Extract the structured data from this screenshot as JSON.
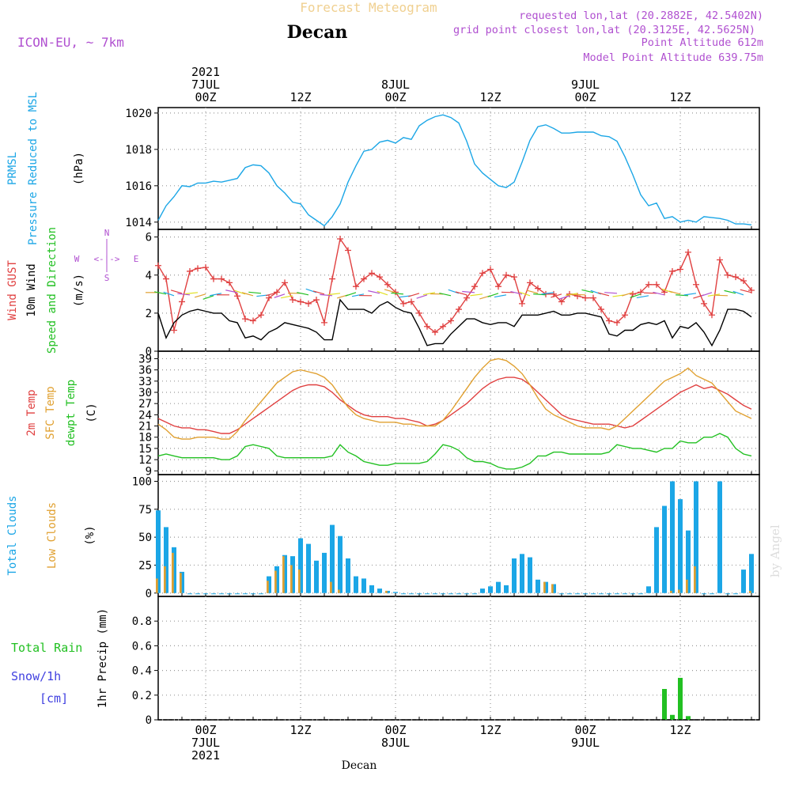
{
  "header": {
    "title": "Forecast Meteogram",
    "location": "Decan",
    "model": "ICON-EU, ~ 7km",
    "requested": "requested lon,lat (20.2882E, 42.5402N)",
    "grid_point": "grid point closest lon,lat (20.3125E, 42.5625N)",
    "point_alt": "Point Altitude 612m",
    "model_alt": "Model Point Altitude 639.75m",
    "credit": "by Angel",
    "footer_location": "Decan"
  },
  "time_axis": {
    "top_labels": [
      {
        "t": 6,
        "lines": [
          "2021",
          "7JUL",
          "00Z"
        ]
      },
      {
        "t": 18,
        "lines": [
          "12Z"
        ]
      },
      {
        "t": 30,
        "lines": [
          "8JUL",
          "00Z"
        ]
      },
      {
        "t": 42,
        "lines": [
          "12Z"
        ]
      },
      {
        "t": 54,
        "lines": [
          "9JUL",
          "00Z"
        ]
      },
      {
        "t": 66,
        "lines": [
          "12Z"
        ]
      }
    ],
    "bottom_labels": [
      {
        "t": 6,
        "lines": [
          "00Z",
          "7JUL",
          "2021"
        ]
      },
      {
        "t": 18,
        "lines": [
          "12Z"
        ]
      },
      {
        "t": 30,
        "lines": [
          "00Z",
          "8JUL"
        ]
      },
      {
        "t": 42,
        "lines": [
          "12Z"
        ]
      },
      {
        "t": 54,
        "lines": [
          "00Z",
          "9JUL"
        ]
      },
      {
        "t": 66,
        "lines": [
          "12Z"
        ]
      }
    ],
    "range": [
      0,
      76
    ]
  },
  "wind_compass": {
    "n": "N",
    "e": "E",
    "s": "S",
    "w": "W"
  },
  "colors": {
    "pressure": "#1ba6e6",
    "gust": "#e04040",
    "wind": "#000000",
    "temp2m": "#e04040",
    "sfc": "#e0a030",
    "dewpt": "#22c022",
    "total_clouds": "#1ba6e6",
    "low_clouds": "#e0a030",
    "rain": "#22c022",
    "snow": "#4040e0",
    "label_purple": "#b050d0",
    "grid": "#999999"
  },
  "chart_data": [
    {
      "type": "line",
      "panel": "pressure",
      "label_lines": [
        {
          "text": "PRMSL",
          "color": "#1ba6e6"
        },
        {
          "text": "Pressure Reduced to MSL",
          "color": "#1ba6e6"
        },
        {
          "text": "(hPa)",
          "color": "#000000"
        }
      ],
      "ylim": [
        1013.6,
        1020.3
      ],
      "yticks": [
        1014,
        1016,
        1018,
        1020
      ],
      "x": [
        0,
        1,
        2,
        3,
        4,
        5,
        6,
        7,
        8,
        9,
        10,
        11,
        12,
        13,
        14,
        15,
        16,
        17,
        18,
        19,
        20,
        21,
        22,
        23,
        24,
        25,
        26,
        27,
        28,
        29,
        30,
        31,
        32,
        33,
        34,
        35,
        36,
        37,
        38,
        39,
        40,
        41,
        42,
        43,
        44,
        45,
        46,
        47,
        48,
        49,
        50,
        51,
        52,
        53,
        54,
        55,
        56,
        57,
        58,
        59,
        60,
        61,
        62,
        63,
        64,
        65,
        66,
        67,
        68,
        69,
        70,
        71,
        72,
        73,
        74,
        75
      ],
      "series": [
        {
          "values": [
            1014.1,
            1014.9,
            1015.4,
            1016.0,
            1015.95,
            1016.15,
            1016.15,
            1016.25,
            1016.2,
            1016.3,
            1016.4,
            1017.0,
            1017.15,
            1017.1,
            1016.7,
            1016.0,
            1015.6,
            1015.1,
            1015.0,
            1014.4,
            1014.1,
            1013.8,
            1014.3,
            1015.0,
            1016.2,
            1017.1,
            1017.9,
            1018.0,
            1018.4,
            1018.5,
            1018.35,
            1018.65,
            1018.55,
            1019.3,
            1019.6,
            1019.8,
            1019.9,
            1019.75,
            1019.45,
            1018.45,
            1017.2,
            1016.7,
            1016.35,
            1016.0,
            1015.9,
            1016.2,
            1017.3,
            1018.5,
            1019.25,
            1019.35,
            1019.15,
            1018.9,
            1018.9,
            1018.95,
            1018.95,
            1018.95,
            1018.75,
            1018.7,
            1018.45,
            1017.6,
            1016.6,
            1015.5,
            1014.9,
            1015.05,
            1014.2,
            1014.3,
            1014.0,
            1014.1,
            1014.0,
            1014.3,
            1014.25,
            1014.2,
            1014.1,
            1013.9,
            1013.9,
            1013.85
          ]
        }
      ]
    },
    {
      "type": "line",
      "panel": "wind",
      "label_lines": [
        {
          "text": "Wind GUST",
          "color": "#e04040"
        },
        {
          "text": "10m Wind",
          "color": "#000000"
        },
        {
          "text": "Speed and Direction",
          "color": "#22c022"
        },
        {
          "text": "(m/s)",
          "color": "#000000"
        }
      ],
      "ylim": [
        0,
        6.4
      ],
      "yticks": [
        0,
        2,
        4,
        6
      ],
      "x": [
        0,
        1,
        2,
        3,
        4,
        5,
        6,
        7,
        8,
        9,
        10,
        11,
        12,
        13,
        14,
        15,
        16,
        17,
        18,
        19,
        20,
        21,
        22,
        23,
        24,
        25,
        26,
        27,
        28,
        29,
        30,
        31,
        32,
        33,
        34,
        35,
        36,
        37,
        38,
        39,
        40,
        41,
        42,
        43,
        44,
        45,
        46,
        47,
        48,
        49,
        50,
        51,
        52,
        53,
        54,
        55,
        56,
        57,
        58,
        59,
        60,
        61,
        62,
        63,
        64,
        65,
        66,
        67,
        68,
        69,
        70,
        71,
        72,
        73,
        74,
        75
      ],
      "series": [
        {
          "name": "gust",
          "values": [
            4.5,
            3.8,
            1.1,
            2.6,
            4.2,
            4.35,
            4.4,
            3.8,
            3.8,
            3.6,
            2.9,
            1.7,
            1.6,
            1.9,
            2.8,
            3.1,
            3.6,
            2.7,
            2.6,
            2.5,
            2.7,
            1.5,
            3.8,
            5.9,
            5.3,
            3.4,
            3.8,
            4.1,
            3.9,
            3.5,
            3.1,
            2.5,
            2.6,
            2.0,
            1.3,
            1.0,
            1.3,
            1.6,
            2.2,
            2.8,
            3.4,
            4.1,
            4.3,
            3.4,
            4.0,
            3.9,
            2.5,
            3.6,
            3.3,
            3.0,
            3.0,
            2.6,
            3.0,
            2.9,
            2.8,
            2.8,
            2.2,
            1.6,
            1.5,
            1.9,
            3.0,
            3.1,
            3.5,
            3.5,
            3.1,
            4.2,
            4.3,
            5.2,
            3.5,
            2.5,
            1.9,
            4.8,
            4.0,
            3.9,
            3.7,
            3.2
          ]
        },
        {
          "name": "wind",
          "values": [
            2.0,
            0.7,
            1.5,
            1.9,
            2.1,
            2.2,
            2.1,
            2.0,
            2.0,
            1.6,
            1.5,
            0.7,
            0.8,
            0.6,
            1.0,
            1.2,
            1.5,
            1.4,
            1.3,
            1.2,
            1.0,
            0.6,
            0.6,
            2.7,
            2.2,
            2.2,
            2.2,
            2.0,
            2.4,
            2.6,
            2.3,
            2.1,
            2.0,
            1.2,
            0.3,
            0.4,
            0.4,
            0.9,
            1.3,
            1.7,
            1.7,
            1.5,
            1.4,
            1.5,
            1.5,
            1.3,
            1.9,
            1.9,
            1.9,
            2.0,
            2.1,
            1.9,
            1.9,
            2.0,
            2.0,
            1.9,
            1.8,
            0.9,
            0.8,
            1.1,
            1.1,
            1.4,
            1.5,
            1.4,
            1.6,
            0.7,
            1.3,
            1.2,
            1.5,
            1.0,
            0.3,
            1.1,
            2.2,
            2.2,
            2.1,
            1.8
          ]
        }
      ]
    },
    {
      "type": "line",
      "panel": "temperature",
      "label_lines": [
        {
          "text": "2m Temp",
          "color": "#e04040"
        },
        {
          "text": "SFC Temp",
          "color": "#e0a030"
        },
        {
          "text": "dewpt Temp",
          "color": "#22c022"
        },
        {
          "text": "(C)",
          "color": "#000000"
        }
      ],
      "ylim": [
        8,
        41
      ],
      "yticks": [
        9,
        12,
        15,
        18,
        21,
        24,
        27,
        30,
        33,
        36,
        39
      ],
      "x": [
        0,
        1,
        2,
        3,
        4,
        5,
        6,
        7,
        8,
        9,
        10,
        11,
        12,
        13,
        14,
        15,
        16,
        17,
        18,
        19,
        20,
        21,
        22,
        23,
        24,
        25,
        26,
        27,
        28,
        29,
        30,
        31,
        32,
        33,
        34,
        35,
        36,
        37,
        38,
        39,
        40,
        41,
        42,
        43,
        44,
        45,
        46,
        47,
        48,
        49,
        50,
        51,
        52,
        53,
        54,
        55,
        56,
        57,
        58,
        59,
        60,
        61,
        62,
        63,
        64,
        65,
        66,
        67,
        68,
        69,
        70,
        71,
        72,
        73,
        74,
        75
      ],
      "series": [
        {
          "name": "2m",
          "values": [
            23,
            22,
            21,
            20.5,
            20.5,
            20,
            20,
            19.5,
            19,
            19,
            20,
            21.5,
            23,
            24.5,
            26,
            27.5,
            29,
            30.5,
            31.5,
            32,
            32,
            31.5,
            30,
            28,
            26.5,
            25,
            24,
            23.5,
            23.5,
            23.5,
            23,
            23,
            22.5,
            22,
            21,
            21.5,
            22.5,
            24,
            25.5,
            27,
            29,
            31,
            32.5,
            33.5,
            34,
            34,
            33.5,
            32,
            30,
            28,
            26,
            24,
            23,
            22.5,
            22,
            21.5,
            21.5,
            21.5,
            21,
            20.5,
            21,
            22.5,
            24,
            25.5,
            27,
            28.5,
            30,
            31,
            32,
            31,
            31.5,
            30.5,
            29.5,
            28,
            26.5,
            25.5
          ]
        },
        {
          "name": "sfc",
          "values": [
            21.5,
            20,
            18,
            17.5,
            17.5,
            18,
            18,
            18,
            17.5,
            17.5,
            19.5,
            22.5,
            25,
            27.5,
            30,
            32.5,
            34,
            35.5,
            36,
            35.5,
            35,
            34,
            32,
            29,
            26,
            24,
            23,
            22.5,
            22,
            22,
            22,
            21.5,
            21.5,
            21,
            21,
            21,
            22.5,
            25,
            28,
            31,
            34,
            36.5,
            38.5,
            39,
            38.5,
            37,
            35,
            32,
            28.5,
            25.5,
            24,
            23,
            22,
            21,
            20.5,
            20.5,
            20.5,
            20,
            21,
            23,
            25,
            27,
            29,
            31,
            33,
            34,
            35,
            36.5,
            34.5,
            33.5,
            32.5,
            30,
            27.5,
            25,
            24,
            23
          ]
        },
        {
          "name": "dewpt",
          "values": [
            13,
            13.5,
            13,
            12.5,
            12.5,
            12.5,
            12.5,
            12.5,
            12,
            12,
            13,
            15.5,
            16,
            15.5,
            15,
            13,
            12.5,
            12.5,
            12.5,
            12.5,
            12.5,
            12.5,
            13,
            16,
            14,
            13,
            11.5,
            11,
            10.5,
            10.5,
            11,
            11,
            11,
            11,
            11.5,
            13.5,
            16,
            15.5,
            14.5,
            12.5,
            11.5,
            11.5,
            11,
            10,
            9.5,
            9.5,
            10,
            11,
            13,
            13,
            14,
            14,
            13.5,
            13.5,
            13.5,
            13.5,
            13.5,
            14,
            16,
            15.5,
            15,
            15,
            14.5,
            14,
            15,
            15,
            17,
            16.5,
            16.5,
            18,
            18,
            19,
            18,
            15,
            13.5,
            13
          ]
        }
      ]
    },
    {
      "type": "bar",
      "panel": "clouds",
      "label_lines": [
        {
          "text": "Total Clouds",
          "color": "#1ba6e6"
        },
        {
          "text": "Low Clouds",
          "color": "#e0a030"
        },
        {
          "text": "(%)",
          "color": "#000000"
        }
      ],
      "ylim": [
        -3,
        106
      ],
      "yticks": [
        0,
        25,
        50,
        75,
        100
      ],
      "x": [
        0,
        1,
        2,
        3,
        4,
        5,
        6,
        7,
        8,
        9,
        10,
        11,
        12,
        13,
        14,
        15,
        16,
        17,
        18,
        19,
        20,
        21,
        22,
        23,
        24,
        25,
        26,
        27,
        28,
        29,
        30,
        31,
        32,
        33,
        34,
        35,
        36,
        37,
        38,
        39,
        40,
        41,
        42,
        43,
        44,
        45,
        46,
        47,
        48,
        49,
        50,
        51,
        52,
        53,
        54,
        55,
        56,
        57,
        58,
        59,
        60,
        61,
        62,
        63,
        64,
        65,
        66,
        67,
        68,
        69,
        70,
        71,
        72,
        73,
        74,
        75
      ],
      "series": [
        {
          "name": "total",
          "values": [
            74,
            59,
            41,
            19,
            0,
            0,
            0,
            0,
            0,
            0,
            0,
            0,
            0,
            0,
            15,
            24,
            34,
            33,
            49,
            44,
            29,
            36,
            61,
            51,
            31,
            15,
            13,
            7,
            4,
            2,
            1,
            0,
            0,
            0,
            0,
            0,
            0,
            0,
            0,
            0,
            0,
            4,
            6,
            10,
            7,
            31,
            35,
            32,
            12,
            10,
            8,
            0,
            0,
            0,
            0,
            0,
            0,
            0,
            0,
            0,
            0,
            0,
            6,
            59,
            78,
            100,
            84,
            56,
            100,
            0,
            0,
            100,
            0,
            0,
            21,
            35
          ]
        },
        {
          "name": "low",
          "values": [
            13,
            24,
            36,
            18,
            0,
            0,
            0,
            0,
            0,
            0,
            0,
            0,
            0,
            0,
            11,
            20,
            33,
            25,
            21,
            0,
            0,
            0,
            10,
            3,
            0,
            0,
            0,
            0,
            0,
            2,
            0,
            0,
            0,
            0,
            0,
            0,
            0,
            0,
            0,
            0,
            0,
            0,
            0,
            0,
            0,
            0,
            0,
            0,
            0,
            10,
            8,
            0,
            0,
            0,
            0,
            0,
            0,
            0,
            0,
            0,
            0,
            0,
            0,
            0,
            0,
            2,
            3,
            12,
            24,
            0,
            0,
            0,
            0,
            0,
            0,
            2
          ]
        }
      ]
    },
    {
      "type": "bar",
      "panel": "precip",
      "label_lines": [
        {
          "text": "1hr Precip (mm)",
          "color": "#000000"
        }
      ],
      "side_labels": [
        {
          "text": "Total  Rain",
          "color": "#22c022"
        },
        {
          "text": "Snow/1h",
          "color": "#4040e0"
        },
        {
          "text": "[cm]",
          "color": "#4040e0"
        }
      ],
      "ylim": [
        0,
        1.0
      ],
      "yticks": [
        0,
        0.2,
        0.4,
        0.6,
        0.8
      ],
      "ytick_labels": [
        "0",
        "0.2",
        "0.4",
        "0.6",
        "0.8"
      ],
      "x": [
        64,
        65,
        66,
        67
      ],
      "series": [
        {
          "name": "rain",
          "values": [
            0.25,
            0.04,
            0.34,
            0.03
          ]
        }
      ]
    }
  ]
}
